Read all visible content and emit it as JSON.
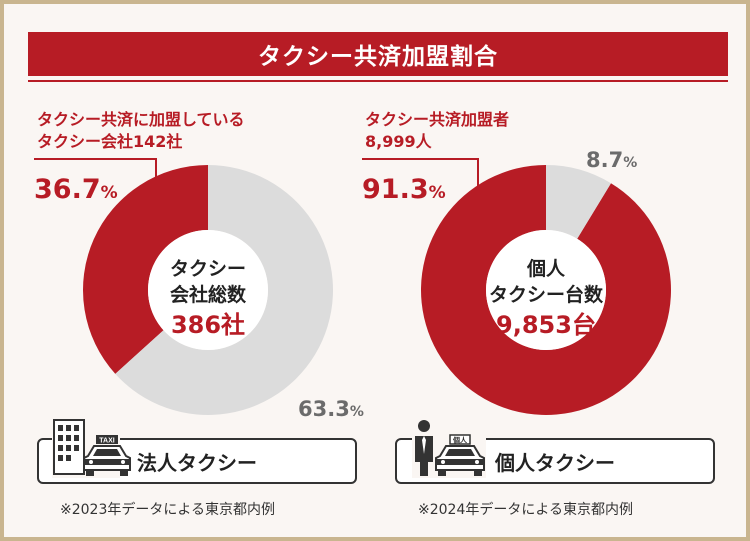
{
  "title": "タクシー共済加盟割合",
  "colors": {
    "accent": "#b71c25",
    "remainder": "#dcdcdc",
    "frame": "#c9b58f"
  },
  "chart_data": [
    {
      "type": "pie",
      "donut": true,
      "center_label_lines": [
        "タクシー",
        "会社総数"
      ],
      "center_value": "386社",
      "annotation_lines": [
        "タクシー共済に加盟している",
        "タクシー会社142社"
      ],
      "slices": [
        {
          "label": "タクシー共済に加盟しているタクシー会社142社",
          "value": 36.7,
          "color": "#b71c25"
        },
        {
          "label": "",
          "value": 63.3,
          "color": "#dcdcdc"
        }
      ],
      "slice_labels": [
        {
          "number": "36.7",
          "unit": "%"
        },
        {
          "number": "63.3",
          "unit": "%"
        }
      ],
      "category_label": "法人タクシー",
      "icon": "office-building-taxi-icon",
      "taxi_sign": "TAXI",
      "footnote": "※2023年データによる東京都内例"
    },
    {
      "type": "pie",
      "donut": true,
      "center_label_lines": [
        "個人",
        "タクシー台数"
      ],
      "center_value": "9,853台",
      "annotation_lines": [
        "タクシー共済加盟者",
        "8,999人"
      ],
      "slices": [
        {
          "label": "タクシー共済加盟者8,999人",
          "value": 91.3,
          "color": "#b71c25"
        },
        {
          "label": "",
          "value": 8.7,
          "color": "#dcdcdc"
        }
      ],
      "slice_labels": [
        {
          "number": "91.3",
          "unit": "%"
        },
        {
          "number": "8.7",
          "unit": "%"
        }
      ],
      "category_label": "個人タクシー",
      "icon": "driver-taxi-icon",
      "taxi_sign": "個人",
      "footnote": "※2024年データによる東京都内例"
    }
  ]
}
